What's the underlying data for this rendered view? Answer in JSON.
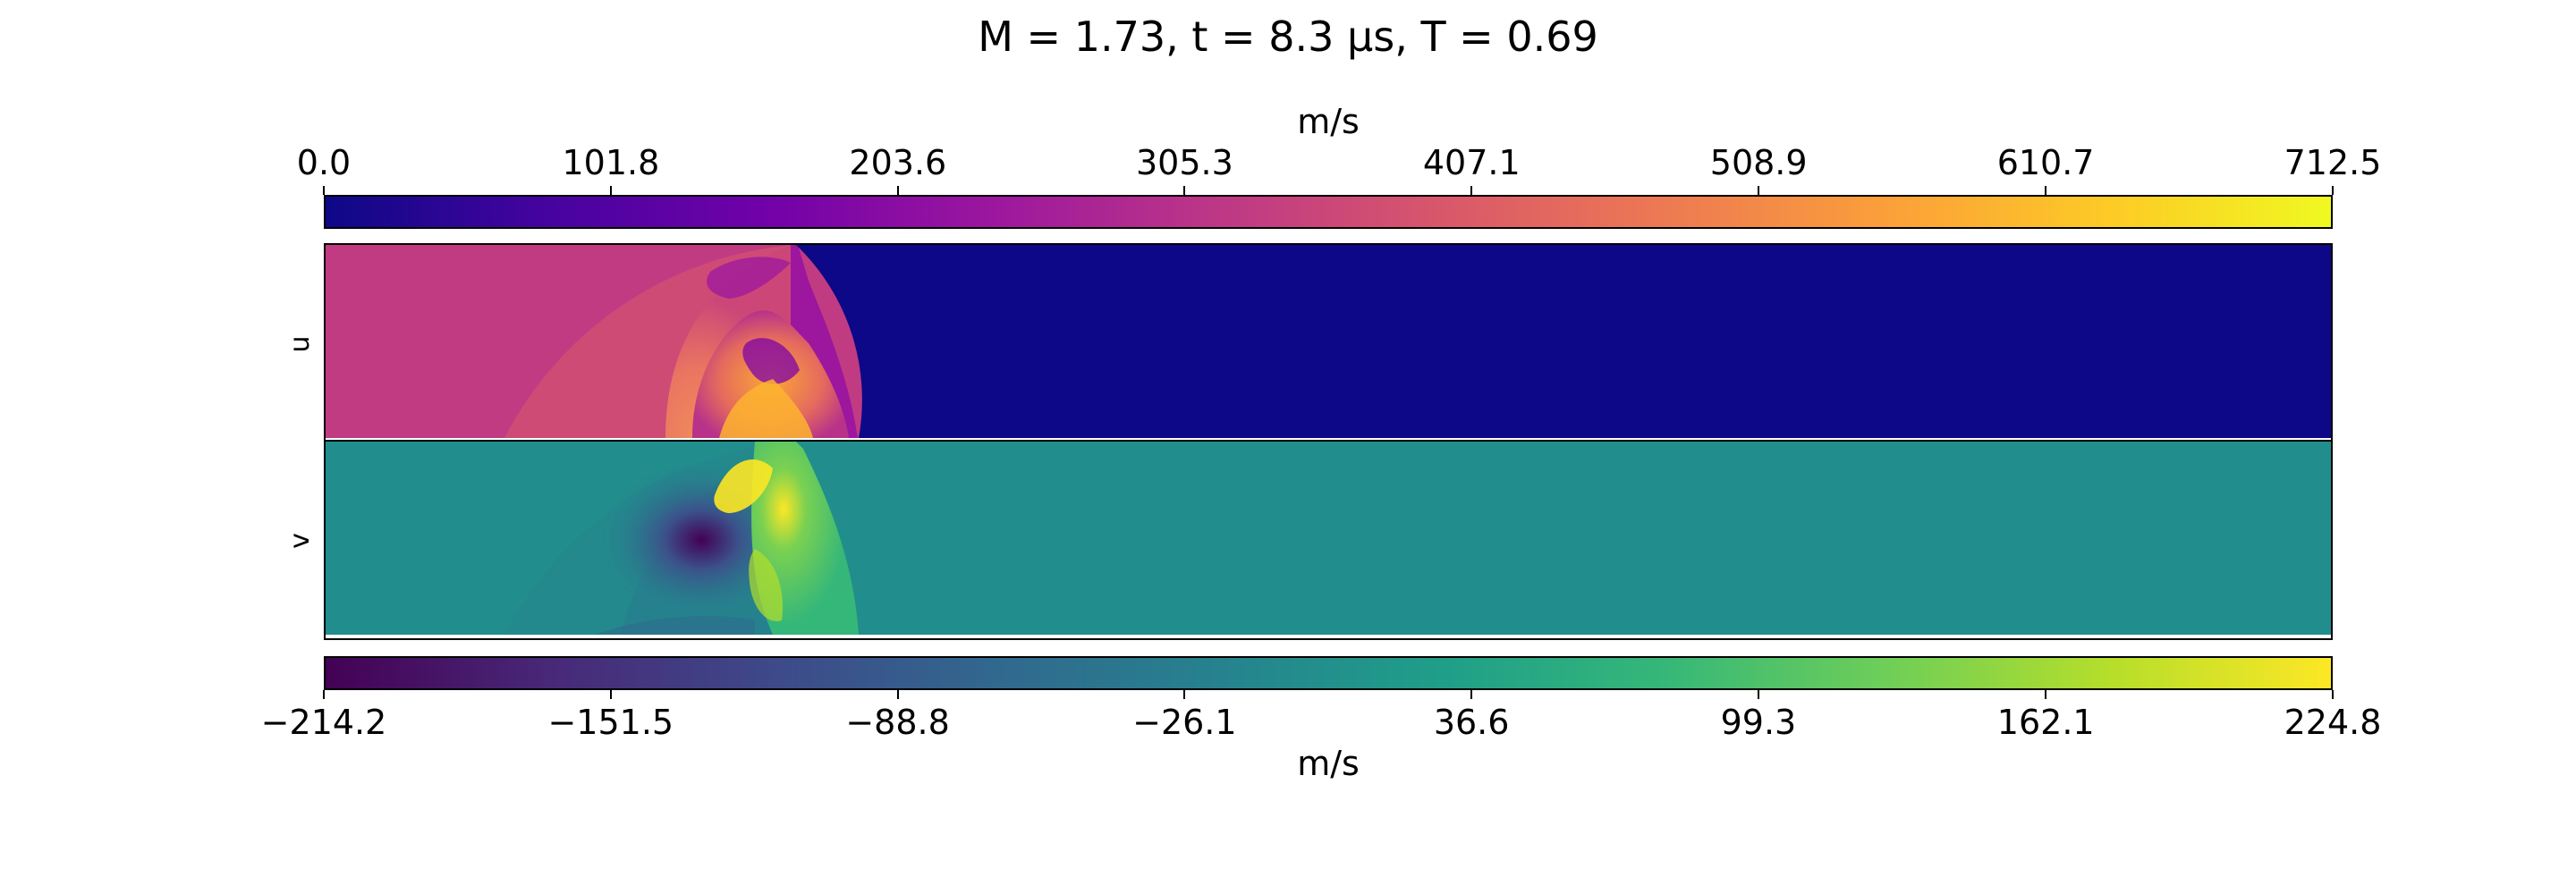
{
  "title": "M = 1.73, t = 8.3 μs, T = 0.69",
  "chart_data": {
    "type": "heatmap",
    "panels": [
      {
        "name": "u",
        "ylabel": "u",
        "colormap": "plasma"
      },
      {
        "name": "v",
        "ylabel": "v",
        "colormap": "viridis"
      }
    ],
    "colorbars": [
      {
        "position": "top",
        "label": "m/s",
        "colormap": "plasma",
        "range": [
          0.0,
          712.5
        ],
        "ticks": [
          0.0,
          101.8,
          203.6,
          305.3,
          407.1,
          508.9,
          610.7,
          712.5
        ],
        "tick_labels": [
          "0.0",
          "101.8",
          "203.6",
          "305.3",
          "407.1",
          "508.9",
          "610.7",
          "712.5"
        ]
      },
      {
        "position": "bottom",
        "label": "m/s",
        "colormap": "viridis",
        "range": [
          -214.2,
          224.8
        ],
        "ticks": [
          -214.2,
          -151.5,
          -88.8,
          -26.1,
          36.6,
          99.3,
          162.1,
          224.8
        ],
        "tick_labels": [
          "−214.2",
          "−151.5",
          "−88.8",
          "−26.1",
          "36.6",
          "99.3",
          "162.1",
          "224.8"
        ]
      }
    ],
    "colors": {
      "u_preshock": "#0d0887",
      "v_preshock": "#218e8d"
    }
  }
}
